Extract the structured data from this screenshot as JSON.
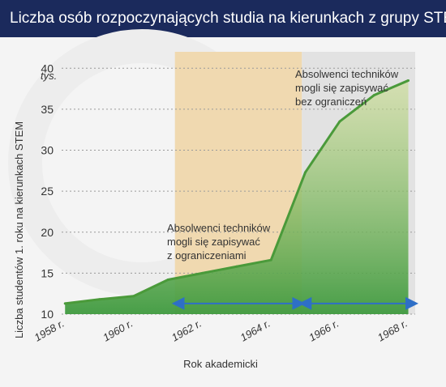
{
  "title": "Liczba osób rozpoczynających studia na kierunkach z grupy STEM",
  "chart_data": {
    "type": "line",
    "x": [
      1958,
      1959,
      1960,
      1961,
      1962,
      1963,
      1964,
      1965,
      1966,
      1967,
      1968
    ],
    "tick_labels": [
      "1958 r.",
      "1960 r.",
      "1962 r.",
      "1964 r.",
      "1966 r.",
      "1968 r."
    ],
    "tick_values": [
      1958,
      1960,
      1962,
      1964,
      1966,
      1968
    ],
    "y_ticks": [
      10,
      15,
      20,
      25,
      30,
      35,
      40
    ],
    "series": [
      {
        "values": [
          11.3,
          11.8,
          12.2,
          14.2,
          15.0,
          15.8,
          16.6,
          27.3,
          33.5,
          36.7,
          38.5
        ],
        "color": "#4a9a3a"
      }
    ],
    "ylim": [
      10,
      42
    ],
    "xlim": [
      1957.9,
      1968.2
    ],
    "unit_label": "tys.",
    "ylabel": "Liczba studentów 1. roku na kierunkach STEM",
    "xlabel": "Rok akademicki",
    "grid": true,
    "shaded_regions": [
      {
        "from": 1961.2,
        "to": 1964.9,
        "color": "#f0d9b0"
      },
      {
        "from": 1964.9,
        "to": 1968.2,
        "color": "#e2e2e2"
      }
    ],
    "arrows": [
      {
        "from": 1961.2,
        "to": 1964.9,
        "y": 11.3,
        "color": "#2e6fc7"
      },
      {
        "from": 1964.9,
        "to": 1968.2,
        "y": 11.3,
        "color": "#2e6fc7"
      }
    ],
    "annotations": [
      {
        "lines": [
          "Absolwenci techników",
          "mogli się zapisywać",
          "z ograniczeniami"
        ]
      },
      {
        "lines": [
          "Absolwenci techników",
          "mogli się zapisywać",
          "bez ograniczeń"
        ]
      }
    ]
  }
}
